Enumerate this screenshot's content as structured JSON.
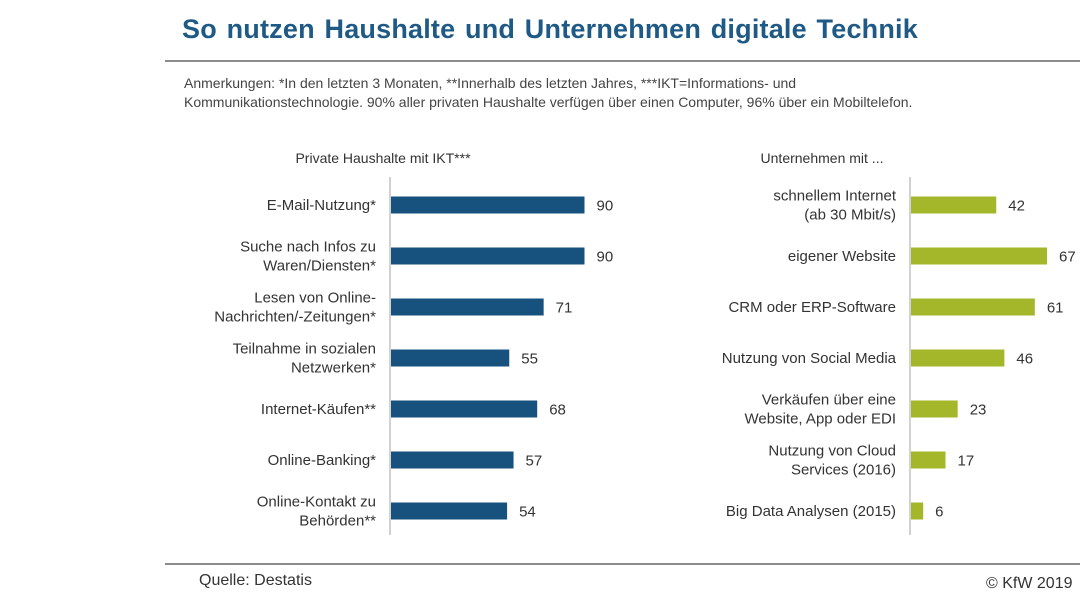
{
  "title": "So nutzen Haushalte und Unternehmen digitale  Technik",
  "notes": {
    "line1": "Anmerkungen: *In den letzten 3 Monaten, **Innerhalb des letzten Jahres, ***IKT=Informations- und",
    "line2": "Kommunikationstechnologie. 90% aller privaten Haushalte verfügen über einen Computer, 96% über ein Mobiltelefon."
  },
  "source": "Quelle:  Destatis",
  "copyright": "© KfW 2019",
  "colors": {
    "households": "#17527e",
    "companies": "#a4b72a",
    "title": "#1f5a86"
  },
  "chart_data": [
    {
      "type": "bar",
      "orientation": "horizontal",
      "title": "Private Haushalte mit IKT***",
      "categories": [
        [
          "E-Mail-Nutzung*"
        ],
        [
          "Suche nach Infos zu",
          "Waren/Diensten*"
        ],
        [
          "Lesen von Online-",
          "Nachrichten/-Zeitungen*"
        ],
        [
          "Teilnahme  in sozialen",
          "Netzwerken*"
        ],
        [
          "Internet-Käufen**"
        ],
        [
          "Online-Banking*"
        ],
        [
          "Online-Kontakt zu",
          "Behörden**"
        ]
      ],
      "values": [
        90,
        90,
        71,
        55,
        68,
        57,
        54
      ],
      "unit": "%",
      "xlim": [
        0,
        100
      ]
    },
    {
      "type": "bar",
      "orientation": "horizontal",
      "title": "Unternehmen mit ...",
      "categories": [
        [
          "schnellem Internet",
          "(ab 30 Mbit/s)"
        ],
        [
          "eigener Website"
        ],
        [
          "CRM  oder ERP-Software"
        ],
        [
          "Nutzung von Social Media"
        ],
        [
          "Verkäufen über eine",
          "Website, App oder EDI"
        ],
        [
          "Nutzung von Cloud",
          "Services (2016)"
        ],
        [
          "Big Data Analysen (2015)"
        ]
      ],
      "values": [
        42,
        67,
        61,
        46,
        23,
        17,
        6
      ],
      "unit": "%",
      "xlim": [
        0,
        100
      ]
    }
  ]
}
